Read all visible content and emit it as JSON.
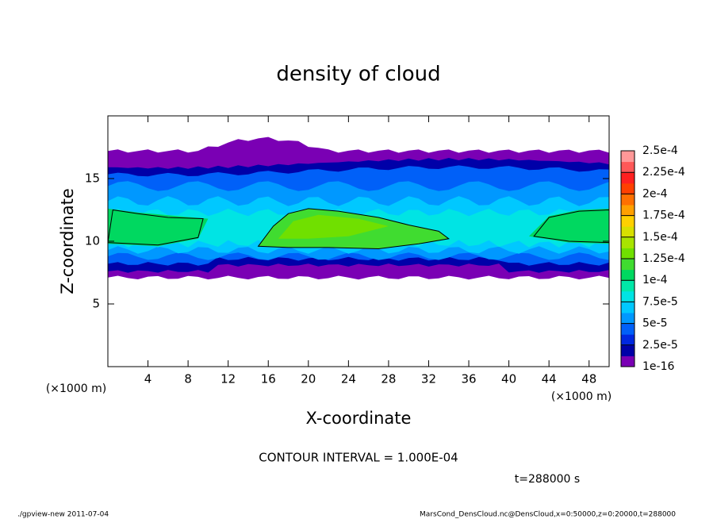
{
  "chart_data": {
    "type": "contour",
    "title": "density of cloud",
    "x_label": "X-coordinate",
    "y_label": "Z-coordinate",
    "x_unit": "(×1000 m)",
    "y_unit": "(×1000 m)",
    "xlim": [
      0,
      50
    ],
    "ylim": [
      0,
      20
    ],
    "xticks": [
      4,
      8,
      12,
      16,
      20,
      24,
      28,
      32,
      36,
      40,
      44,
      48
    ],
    "yticks": [
      5,
      10,
      15
    ],
    "colorbar": {
      "lim": [
        1e-16,
        0.00025
      ],
      "ticks": [
        1e-16,
        {
          "value": 2.5e-05,
          "label": "2.5e-5"
        },
        {
          "value": 5e-05,
          "label": "5e-5"
        },
        {
          "value": 7.5e-05,
          "label": "7.5e-5"
        },
        {
          "value": 0.0001,
          "label": "1e-4"
        },
        {
          "value": 0.000125,
          "label": "1.25e-4"
        },
        {
          "value": 0.00015,
          "label": "1.5e-4"
        },
        {
          "value": 0.000175,
          "label": "1.75e-4"
        },
        {
          "value": 0.0002,
          "label": "2e-4"
        },
        {
          "value": 0.000225,
          "label": "2.25e-4"
        },
        {
          "value": 0.00025,
          "label": "2.5e-4"
        }
      ],
      "colors": [
        "#7a00b4",
        "#0000a8",
        "#0028e0",
        "#0060f8",
        "#0098ff",
        "#00c8ff",
        "#00e4e4",
        "#00e8a8",
        "#00d860",
        "#40dc30",
        "#70e000",
        "#a8e400",
        "#d8e000",
        "#ffd000",
        "#ffa000",
        "#ff7000",
        "#ff4000",
        "#ff2020",
        "#ff5858",
        "#ff9898"
      ]
    },
    "contour_interval": "CONTOUR INTERVAL = 1.000E-04",
    "time_label": "t=288000 s",
    "footer_left": "./gpview-new  2011-07-04",
    "footer_right": "MarsCond_DensCloud.nc@DensCloud,x=0:50000,z=0:20000,t=288000"
  }
}
